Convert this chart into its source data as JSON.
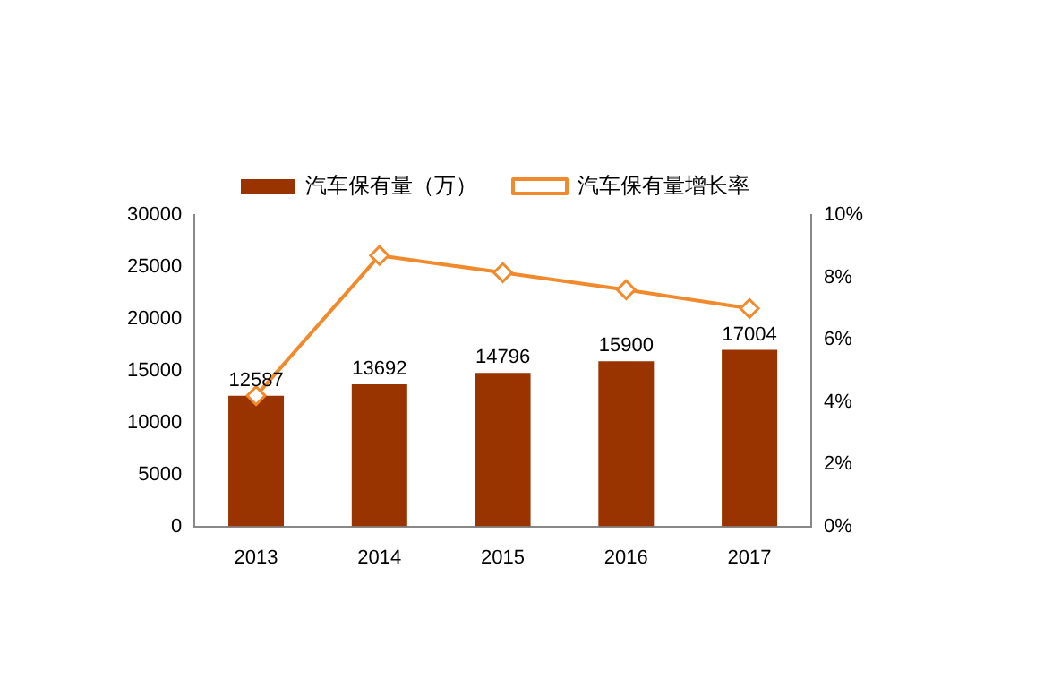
{
  "chart_data": {
    "type": "bar",
    "categories": [
      "2013",
      "2014",
      "2015",
      "2016",
      "2017"
    ],
    "series": [
      {
        "name": "汽车保有量（万）",
        "color": "#993300",
        "values": [
          12587,
          13692,
          14796,
          15900,
          17004
        ],
        "value_labels": [
          "12587",
          "13692",
          "14796",
          "15900",
          "17004"
        ]
      },
      {
        "name": "汽车保有量增长率",
        "type": "line",
        "axis": "y2",
        "color": "#f08a2c",
        "marker": "diamond",
        "values": [
          4.2,
          8.7,
          8.15,
          7.6,
          7.0
        ]
      }
    ],
    "ylim": [
      0,
      30000
    ],
    "yticks": [
      0,
      5000,
      10000,
      15000,
      20000,
      25000,
      30000
    ],
    "y2lim": [
      0,
      10
    ],
    "y2ticks": [
      {
        "value": 0,
        "label": "0%"
      },
      {
        "value": 2,
        "label": "2%"
      },
      {
        "value": 4,
        "label": "4%"
      },
      {
        "value": 6,
        "label": "6%"
      },
      {
        "value": 8,
        "label": "8%"
      },
      {
        "value": 10,
        "label": "10%"
      }
    ],
    "grid": false,
    "legend": "top"
  }
}
